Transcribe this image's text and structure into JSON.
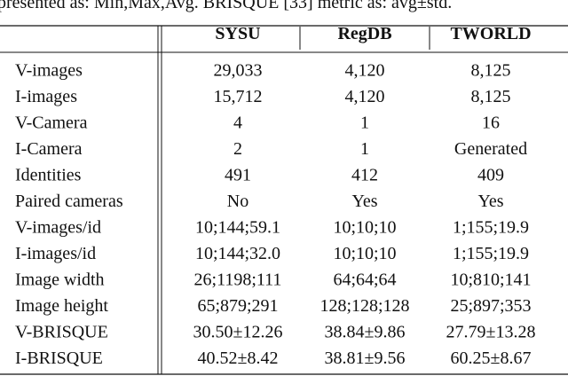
{
  "caption": "presented as: Min,Max,Avg. BRISQUE [33] metric as: avg±std.",
  "table": {
    "columns": [
      "SYSU",
      "RegDB",
      "TWORLD"
    ],
    "rows": [
      [
        "V-images",
        "29,033",
        "4,120",
        "8,125"
      ],
      [
        "I-images",
        "15,712",
        "4,120",
        "8,125"
      ],
      [
        "V-Camera",
        "4",
        "1",
        "16"
      ],
      [
        "I-Camera",
        "2",
        "1",
        "Generated"
      ],
      [
        "Identities",
        "491",
        "412",
        "409"
      ],
      [
        "Paired cameras",
        "No",
        "Yes",
        "Yes"
      ],
      [
        "V-images/id",
        "10;144;59.1",
        "10;10;10",
        "1;155;19.9"
      ],
      [
        "I-images/id",
        "10;144;32.0",
        "10;10;10",
        "1;155;19.9"
      ],
      [
        "Image width",
        "26;1198;111",
        "64;64;64",
        "10;810;141"
      ],
      [
        "Image height",
        "65;879;291",
        "128;128;128",
        "25;897;353"
      ],
      [
        "V-BRISQUE",
        "30.50±12.26",
        "38.84±9.86",
        "27.79±13.28"
      ],
      [
        "I-BRISQUE",
        "40.52±8.42",
        "38.81±9.56",
        "60.25±8.67"
      ]
    ]
  }
}
